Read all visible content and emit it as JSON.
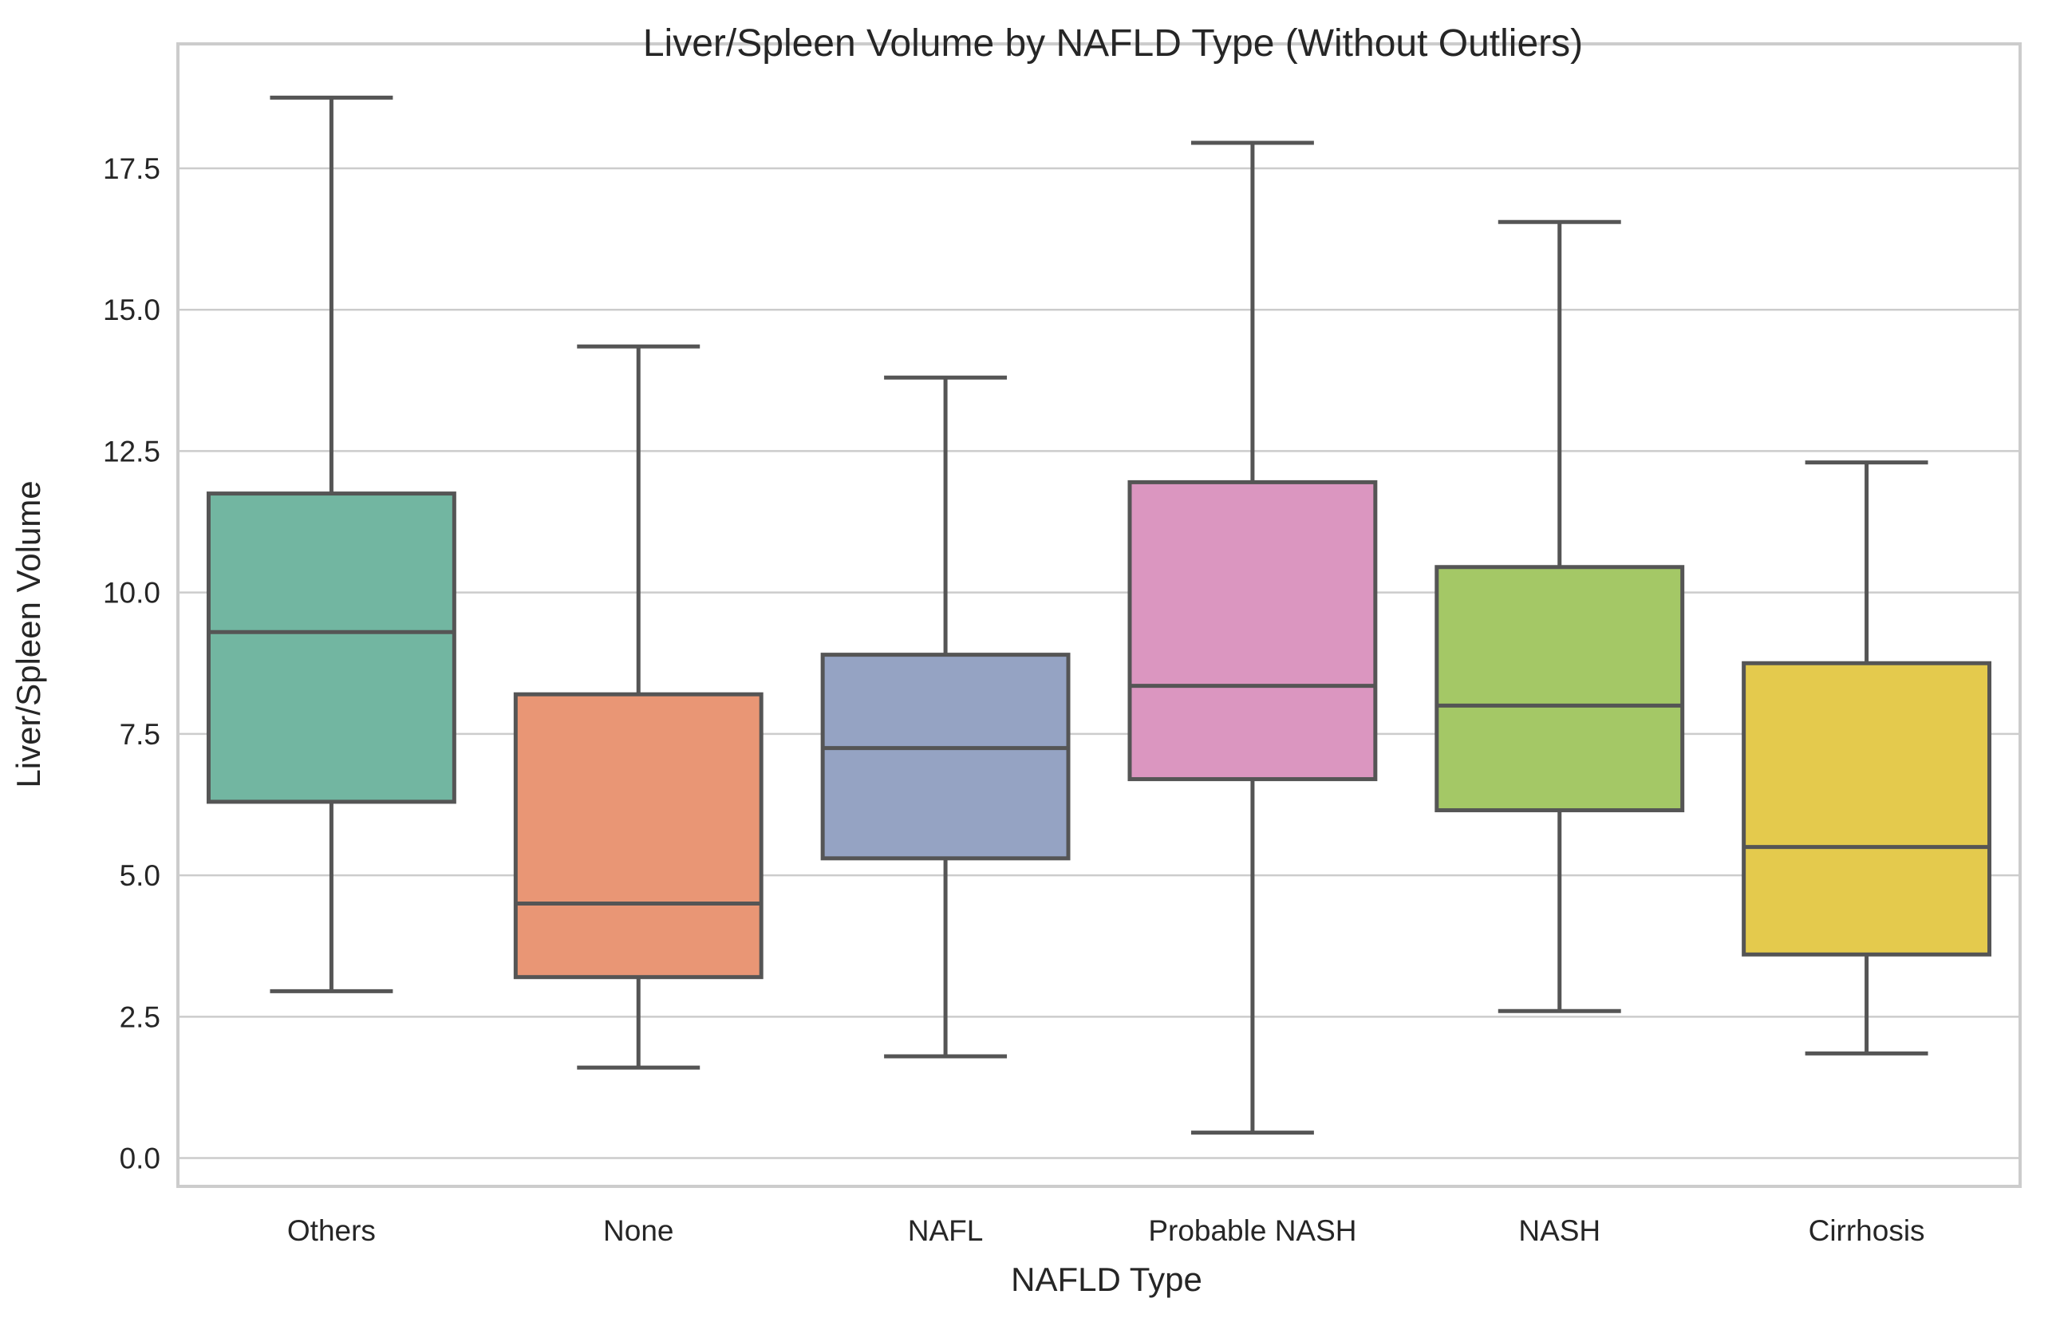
{
  "chart_data": {
    "type": "box",
    "title": "Liver/Spleen Volume by NAFLD Type (Without Outliers)",
    "xlabel": "NAFLD Type",
    "ylabel": "Liver/Spleen Volume",
    "ylim": [
      -0.5,
      19.7
    ],
    "yticks": [
      0.0,
      2.5,
      5.0,
      7.5,
      10.0,
      12.5,
      15.0,
      17.5
    ],
    "ytick_labels": [
      "0.0",
      "2.5",
      "5.0",
      "7.5",
      "10.0",
      "12.5",
      "15.0",
      "17.5"
    ],
    "grid": true,
    "categories": [
      "Others",
      "None",
      "NAFL",
      "Probable NASH",
      "NASH",
      "Cirrhosis"
    ],
    "boxes": [
      {
        "category": "Others",
        "whisker_low": 2.95,
        "q1": 6.3,
        "median": 9.3,
        "q3": 11.75,
        "whisker_high": 18.75,
        "color": "#72b6a1"
      },
      {
        "category": "None",
        "whisker_low": 1.6,
        "q1": 3.2,
        "median": 4.5,
        "q3": 8.2,
        "whisker_high": 14.35,
        "color": "#e99675"
      },
      {
        "category": "NAFL",
        "whisker_low": 1.8,
        "q1": 5.3,
        "median": 7.25,
        "q3": 8.9,
        "whisker_high": 13.8,
        "color": "#95a3c3"
      },
      {
        "category": "Probable NASH",
        "whisker_low": 0.45,
        "q1": 6.7,
        "median": 8.35,
        "q3": 11.95,
        "whisker_high": 17.95,
        "color": "#db96c0"
      },
      {
        "category": "NASH",
        "whisker_low": 2.6,
        "q1": 6.15,
        "median": 8.0,
        "q3": 10.45,
        "whisker_high": 16.55,
        "color": "#a4c866"
      },
      {
        "category": "Cirrhosis",
        "whisker_low": 1.85,
        "q1": 3.6,
        "median": 5.5,
        "q3": 8.75,
        "whisker_high": 12.3,
        "color": "#e4ca4d"
      }
    ]
  }
}
